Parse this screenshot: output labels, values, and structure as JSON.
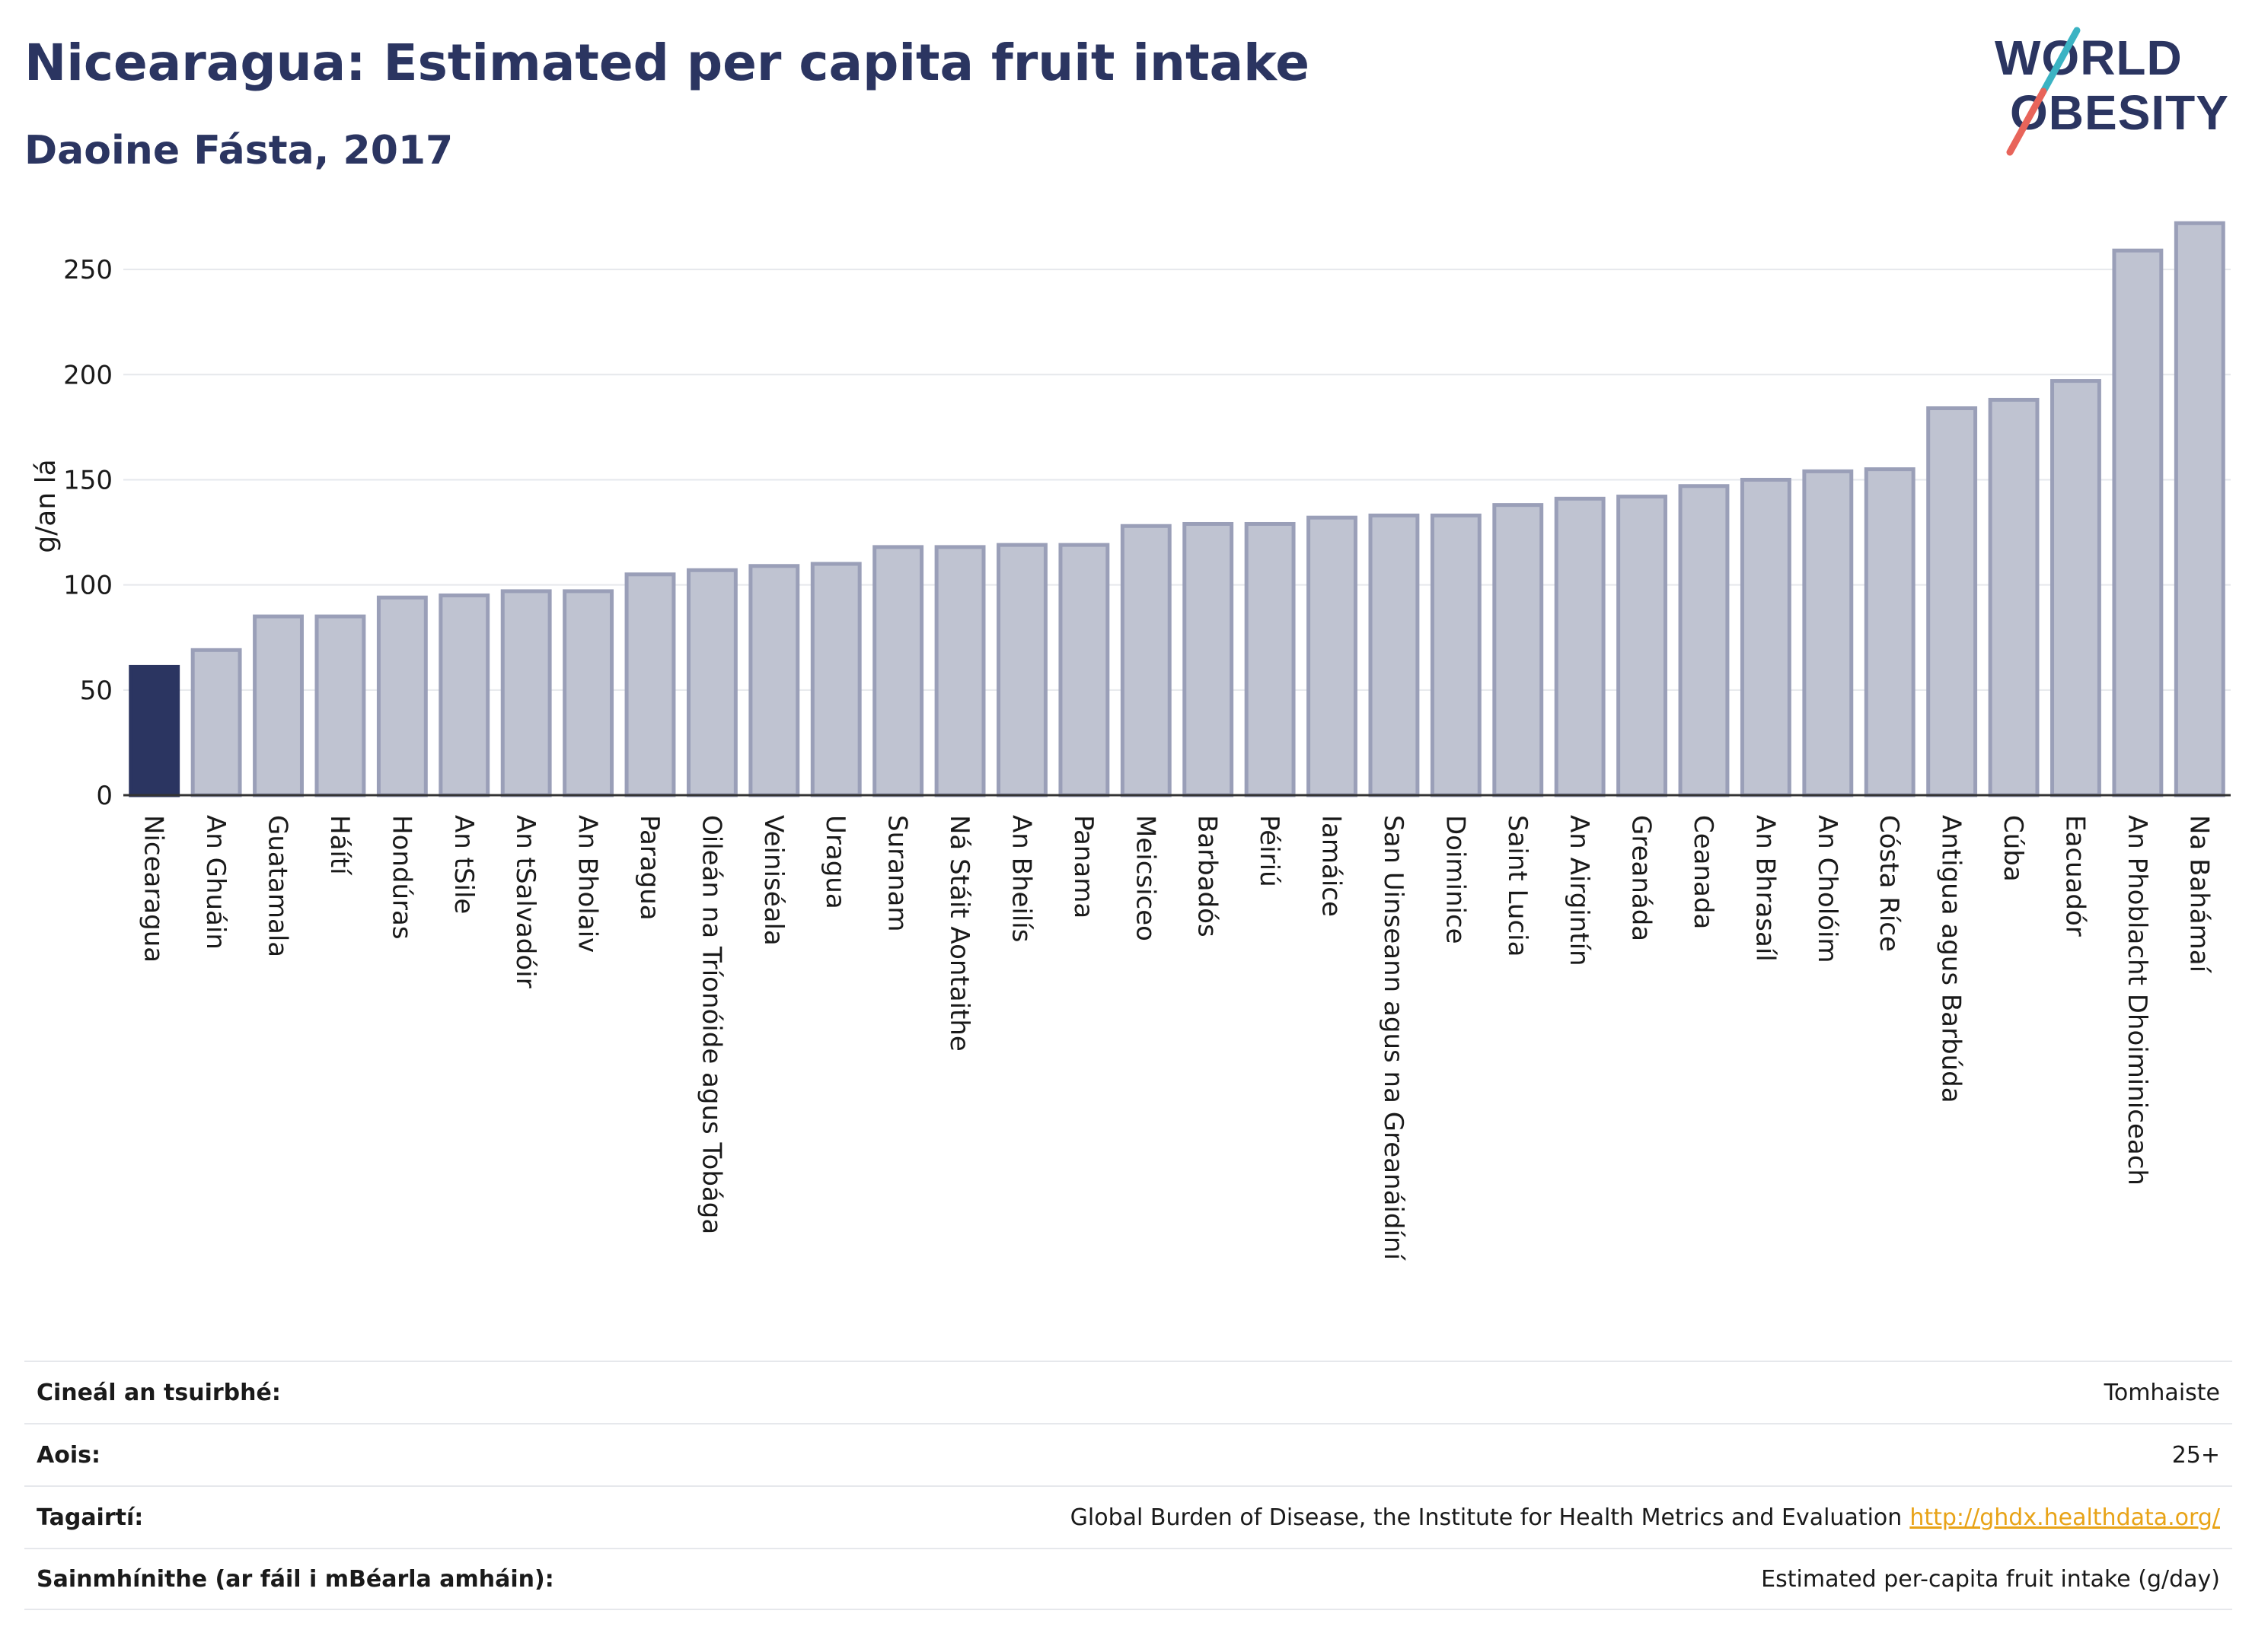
{
  "header": {
    "title": "Nicearagua: Estimated per capita fruit intake",
    "subtitle": "Daoine Fásta, 2017"
  },
  "logo": {
    "line1": "WORLD",
    "line2": "OBESITY",
    "colors": {
      "text": "#2b3561",
      "slash_teal": "#3bb3c3",
      "slash_coral": "#e8645a"
    }
  },
  "colors": {
    "highlight_bar": "#2b3561",
    "bar_fill": "#bfc3d1",
    "bar_stroke": "#9a9fb8",
    "axis": "#333333",
    "grid": "#e6e8ec"
  },
  "chart_data": {
    "type": "bar",
    "ylabel": "g/an lá",
    "ylim": [
      0,
      275
    ],
    "yticks": [
      0,
      50,
      100,
      150,
      200,
      250
    ],
    "highlight": "Nicearagua",
    "categories": [
      "Nicearagua",
      "An Ghuáin",
      "Guatamala",
      "Háítí",
      "Hondúras",
      "An tSile",
      "An tSalvadóir",
      "An Bholaiv",
      "Paragua",
      "Oileán na Tríonóide agus Tobága",
      "Veiniséala",
      "Uragua",
      "Suranam",
      "Ná Stáit Aontaithe",
      "An Bheilís",
      "Panama",
      "Meicsiceo",
      "Barbadós",
      "Péiriú",
      "Iamáice",
      "San Uinseann agus na Greanáidíní",
      "Doiminice",
      "Saint Lucia",
      "An Airgintín",
      "Greanáda",
      "Ceanada",
      "An Bhrasaíl",
      "An Cholóim",
      "Cósta Ríce",
      "Antigua agus Barbúda",
      "Cúba",
      "Eacuadór",
      "An Phoblacht Dhoiminiceach",
      "Na Bahámaí"
    ],
    "values": [
      61,
      69,
      85,
      85,
      94,
      95,
      97,
      97,
      105,
      107,
      109,
      110,
      118,
      118,
      119,
      119,
      128,
      129,
      129,
      132,
      133,
      133,
      138,
      141,
      142,
      147,
      150,
      154,
      155,
      184,
      188,
      197,
      259,
      272
    ]
  },
  "info_table": [
    {
      "label": "Cineál an tsuirbhé:",
      "value": "Tomhaiste",
      "link": ""
    },
    {
      "label": "Aois:",
      "value": "25+",
      "link": ""
    },
    {
      "label": "Tagairtí:",
      "value": "Global Burden of Disease, the Institute for Health Metrics and Evaluation",
      "link": "http://ghdx.healthdata.org/"
    },
    {
      "label": "Sainmhínithe (ar fáil i mBéarla amháin):",
      "value": "Estimated per-capita fruit intake (g/day)",
      "link": ""
    }
  ]
}
